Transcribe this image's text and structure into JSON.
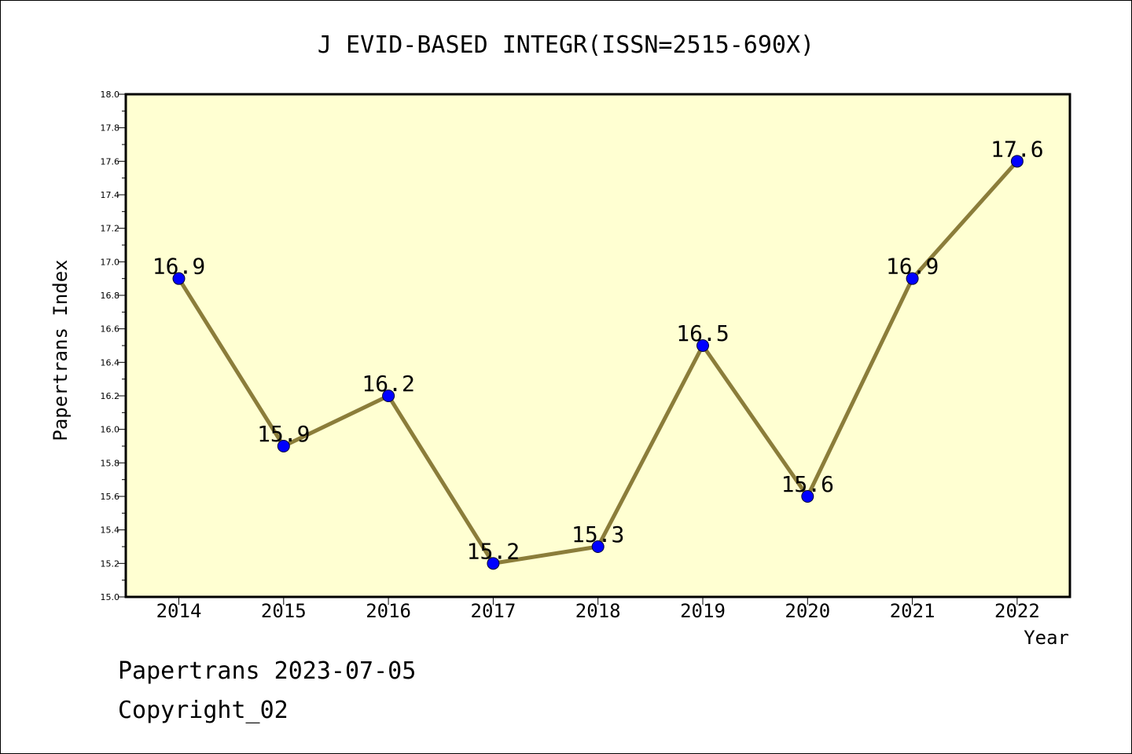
{
  "chart_data": {
    "type": "line",
    "title": "J EVID-BASED INTEGR(ISSN=2515-690X)",
    "xlabel": "Year",
    "ylabel": "Papertrans Index",
    "categories": [
      "2014",
      "2015",
      "2016",
      "2017",
      "2018",
      "2019",
      "2020",
      "2021",
      "2022"
    ],
    "series": [
      {
        "values": [
          16.9,
          15.9,
          16.2,
          15.2,
          15.3,
          16.5,
          15.6,
          16.9,
          17.6
        ],
        "labels": [
          "16.9",
          "15.9",
          "16.2",
          "15.2",
          "15.3",
          "16.5",
          "15.6",
          "16.9",
          "17.6"
        ]
      }
    ],
    "ylim": [
      15.0,
      18.0
    ],
    "yticks": [
      "15.0",
      "15.2",
      "15.4",
      "15.6",
      "15.8",
      "16.0",
      "16.2",
      "16.4",
      "16.6",
      "16.8",
      "17.0",
      "17.2",
      "17.4",
      "17.6",
      "17.8",
      "18.0"
    ],
    "grid": false,
    "colors": {
      "plot_background": "#ffffd2",
      "line": "#8b7d3a",
      "marker": "#0000ff"
    }
  },
  "footer": {
    "line1": "Papertrans 2023-07-05",
    "line2": "Copyright_02"
  }
}
